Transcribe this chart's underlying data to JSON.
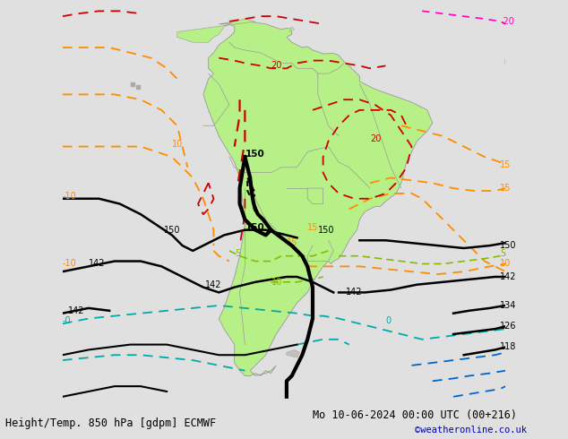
{
  "title_left": "Height/Temp. 850 hPa [gdpm] ECMWF",
  "title_right": "Mo 10-06-2024 00:00 UTC (00+216)",
  "credit": "©weatheronline.co.uk",
  "bg_color": "#e0e0e0",
  "land_color": "#b8f088",
  "border_color": "#999999",
  "xlim": [
    -105,
    -20
  ],
  "ylim": [
    -68,
    16
  ],
  "title_fontsize": 8.5,
  "credit_fontsize": 7.5,
  "credit_color": "#0000bb"
}
